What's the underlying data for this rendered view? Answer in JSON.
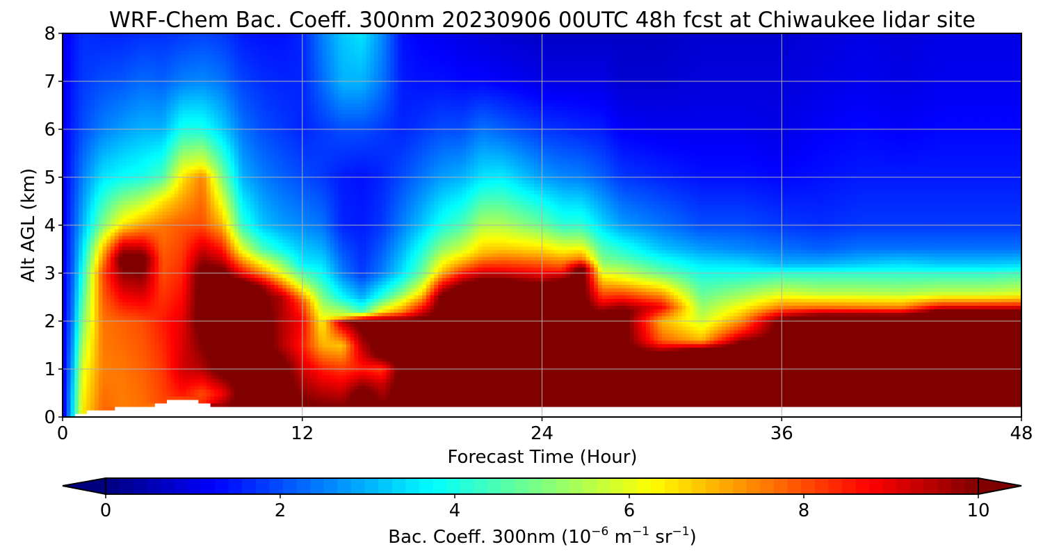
{
  "chart_data": {
    "type": "heatmap",
    "title": "WRF-Chem Bac. Coeff. 300nm  20230906 00UTC 48h fcst at Chiwaukee lidar site",
    "xlabel": "Forecast Time (Hour)",
    "ylabel": "Alt AGL (km)",
    "xlim": [
      0,
      48
    ],
    "ylim": [
      0,
      8
    ],
    "xticks": [
      "0",
      "12",
      "24",
      "36",
      "48"
    ],
    "yticks": [
      "0",
      "1",
      "2",
      "3",
      "4",
      "5",
      "6",
      "7",
      "8"
    ],
    "grid": true,
    "colorbar": {
      "label_main": "Bac. Coeff. 300nm  (10",
      "label_exp1": "−6",
      "label_mid": " m",
      "label_exp2": "−1",
      "label_sr": " sr",
      "label_exp3": "−1",
      "label_end": ")",
      "range": [
        0,
        10
      ],
      "ticks": [
        "0",
        "2",
        "4",
        "6",
        "8",
        "10"
      ],
      "extend": "both",
      "colormap": "jet"
    },
    "x_hours": [
      0,
      0.5,
      1,
      2,
      3,
      4,
      5,
      6,
      7,
      8,
      9,
      10,
      11,
      12,
      13,
      14,
      15,
      16,
      17,
      18,
      19,
      20,
      21,
      22,
      24,
      25,
      26,
      27,
      28,
      30,
      32,
      34,
      36,
      38,
      40,
      42,
      44,
      46,
      48
    ],
    "profiles": [
      {
        "t": 0,
        "sfc": 0,
        "z": [
          0,
          0.5,
          1,
          2,
          3,
          4,
          5,
          6,
          7,
          8
        ],
        "v": [
          0.8,
          0.9,
          0.9,
          1.0,
          1.0,
          1.0,
          1.0,
          1.0,
          1.0,
          1.0
        ]
      },
      {
        "t": 0.5,
        "sfc": 0,
        "z": [
          0,
          0.5,
          1,
          2,
          3,
          4,
          5,
          6,
          7,
          8
        ],
        "v": [
          3.5,
          3.3,
          3.0,
          2.5,
          2.2,
          2.0,
          1.8,
          1.6,
          1.5,
          1.4
        ]
      },
      {
        "t": 1,
        "sfc": 0.1,
        "z": [
          0,
          1,
          2,
          3,
          4,
          5,
          6,
          7,
          8
        ],
        "v": [
          6.5,
          6.0,
          5.0,
          4.0,
          3.0,
          2.5,
          2.0,
          1.8,
          1.7
        ]
      },
      {
        "t": 2,
        "sfc": 0.15,
        "z": [
          0,
          1,
          2,
          3,
          3.5,
          4,
          5,
          6,
          7,
          8
        ],
        "v": [
          7.8,
          7.5,
          7.6,
          8.0,
          6.8,
          5.0,
          3.5,
          2.5,
          2.0,
          1.6
        ]
      },
      {
        "t": 3,
        "sfc": 0.2,
        "z": [
          0,
          1,
          2,
          3,
          3.3,
          3.6,
          4,
          5,
          6,
          7,
          8
        ],
        "v": [
          7.5,
          7.6,
          7.8,
          9.8,
          10.5,
          9.0,
          6.5,
          3.8,
          2.8,
          2.1,
          1.6
        ]
      },
      {
        "t": 4,
        "sfc": 0.2,
        "z": [
          0,
          1,
          2,
          3,
          3.3,
          3.6,
          4,
          5,
          6,
          7,
          8
        ],
        "v": [
          7.6,
          7.8,
          8.0,
          10.0,
          10.5,
          9.0,
          7.2,
          4.0,
          3.0,
          2.3,
          1.7
        ]
      },
      {
        "t": 5,
        "sfc": 0.3,
        "z": [
          0,
          1,
          2,
          3,
          4,
          4.5,
          5,
          6,
          7,
          8
        ],
        "v": [
          8.0,
          8.2,
          8.5,
          8.0,
          7.6,
          6.5,
          4.5,
          3.0,
          2.2,
          1.7
        ]
      },
      {
        "t": 6,
        "sfc": 0.4,
        "z": [
          0,
          1,
          2,
          3,
          4,
          5,
          5.5,
          6,
          7,
          8
        ],
        "v": [
          8.0,
          9.2,
          9.0,
          8.4,
          7.9,
          6.5,
          5.2,
          4.0,
          2.5,
          1.8
        ]
      },
      {
        "t": 7,
        "sfc": 0.3,
        "z": [
          0,
          0.5,
          1,
          2,
          3,
          4,
          5,
          5.3,
          6,
          7,
          8
        ],
        "v": [
          8.8,
          8.0,
          9.5,
          10.5,
          10.5,
          8.0,
          7.5,
          6.0,
          4.0,
          2.6,
          1.9
        ]
      },
      {
        "t": 8,
        "sfc": 0.2,
        "z": [
          0,
          0.5,
          1,
          2,
          3,
          3.3,
          4,
          5,
          6,
          7,
          8
        ],
        "v": [
          10.5,
          8.8,
          10.5,
          10.5,
          10.5,
          9.2,
          7.0,
          5.0,
          3.3,
          2.4,
          1.8
        ]
      },
      {
        "t": 9,
        "sfc": 0.2,
        "z": [
          0,
          1,
          2,
          2.8,
          3,
          3.5,
          4,
          5,
          6,
          7,
          8
        ],
        "v": [
          10.5,
          10.5,
          10.5,
          10.5,
          8.8,
          6.0,
          4.2,
          3.0,
          2.4,
          1.9,
          1.5
        ]
      },
      {
        "t": 10,
        "sfc": 0.2,
        "z": [
          0,
          1,
          2,
          2.7,
          3,
          3.5,
          4,
          5,
          6,
          7,
          8
        ],
        "v": [
          10.5,
          10.5,
          10.5,
          10.0,
          7.5,
          4.5,
          3.2,
          2.5,
          2.0,
          1.7,
          1.4
        ]
      },
      {
        "t": 11,
        "sfc": 0.2,
        "z": [
          0,
          1,
          1.5,
          2,
          2.5,
          3,
          3.5,
          4,
          5,
          6,
          7,
          8
        ],
        "v": [
          10.5,
          10.5,
          9.5,
          9.5,
          9.5,
          6.0,
          3.8,
          2.8,
          2.2,
          1.8,
          1.6,
          1.4
        ]
      },
      {
        "t": 12,
        "sfc": 0.2,
        "z": [
          0,
          1,
          1.5,
          2,
          2.4,
          2.8,
          3.2,
          4,
          5,
          6,
          7,
          8
        ],
        "v": [
          10.5,
          9.2,
          8.5,
          8.8,
          8.0,
          5.5,
          3.6,
          2.6,
          2.0,
          1.6,
          1.6,
          1.6
        ]
      },
      {
        "t": 13,
        "sfc": 0.2,
        "z": [
          0,
          1,
          1.5,
          2,
          2.5,
          3,
          3.5,
          4,
          5,
          6,
          7,
          8
        ],
        "v": [
          10.5,
          8.5,
          7.0,
          6.3,
          5.0,
          3.8,
          3.0,
          2.4,
          1.8,
          1.8,
          2.3,
          2.5
        ]
      },
      {
        "t": 14,
        "sfc": 0.2,
        "z": [
          0,
          1,
          1.5,
          2,
          2.1,
          2.5,
          3,
          4,
          5,
          6,
          7,
          8
        ],
        "v": [
          10.5,
          8.2,
          6.8,
          9.5,
          6.0,
          3.8,
          2.5,
          1.6,
          1.5,
          2.0,
          3.0,
          3.2
        ]
      },
      {
        "t": 15,
        "sfc": 0.2,
        "z": [
          0,
          0.5,
          1,
          1.5,
          2,
          2.2,
          2.5,
          3,
          4,
          5,
          6,
          7,
          8
        ],
        "v": [
          10.5,
          10.5,
          8.5,
          9.5,
          10.5,
          4.5,
          3.0,
          1.8,
          1.5,
          1.4,
          2.0,
          3.0,
          3.5
        ]
      },
      {
        "t": 16,
        "sfc": 0.2,
        "z": [
          0,
          0.7,
          1,
          1.3,
          2,
          2.2,
          2.5,
          3,
          4,
          5,
          6,
          7,
          8
        ],
        "v": [
          10.5,
          9.2,
          8.2,
          10.5,
          10.5,
          6.5,
          4.2,
          2.5,
          1.8,
          1.6,
          1.8,
          2.4,
          2.6
        ]
      },
      {
        "t": 17,
        "sfc": 0.2,
        "z": [
          0,
          1,
          2,
          2.2,
          2.6,
          3,
          4,
          5,
          6,
          7,
          8
        ],
        "v": [
          10.5,
          10.5,
          10.5,
          7.5,
          5.0,
          3.5,
          2.5,
          2.0,
          1.6,
          1.5,
          1.4
        ]
      },
      {
        "t": 18,
        "sfc": 0.2,
        "z": [
          0,
          1,
          2,
          2.3,
          2.6,
          3,
          3.5,
          4,
          5,
          6,
          7,
          8
        ],
        "v": [
          10.5,
          10.5,
          10.5,
          8.5,
          6.5,
          4.8,
          4.0,
          3.2,
          2.4,
          1.8,
          1.4,
          1.2
        ]
      },
      {
        "t": 19,
        "sfc": 0.2,
        "z": [
          0,
          1,
          2,
          2.5,
          2.8,
          3,
          3.5,
          4,
          5,
          6,
          7,
          8
        ],
        "v": [
          10.5,
          10.5,
          10.5,
          10.5,
          8.5,
          7.0,
          5.2,
          4.0,
          2.8,
          2.0,
          1.4,
          1.1
        ]
      },
      {
        "t": 20,
        "sfc": 0.2,
        "z": [
          0,
          1,
          2,
          2.7,
          3,
          3.2,
          3.5,
          4,
          5,
          6,
          7,
          8
        ],
        "v": [
          10.5,
          10.5,
          10.5,
          10.5,
          8.5,
          7.2,
          5.8,
          4.5,
          3.0,
          2.0,
          1.3,
          1.0
        ]
      },
      {
        "t": 21,
        "sfc": 0.2,
        "z": [
          0,
          1,
          2,
          2.8,
          3.1,
          3.4,
          4,
          4.5,
          5,
          6,
          7,
          8
        ],
        "v": [
          10.5,
          10.5,
          10.5,
          10.5,
          8.6,
          7.0,
          5.5,
          4.5,
          3.5,
          2.4,
          1.3,
          0.9
        ]
      },
      {
        "t": 22,
        "sfc": 0.2,
        "z": [
          0,
          1,
          2,
          2.8,
          3.1,
          3.5,
          4,
          5,
          6,
          7,
          8
        ],
        "v": [
          10.5,
          10.5,
          10.5,
          10.5,
          8.6,
          6.8,
          5.5,
          3.6,
          2.2,
          1.2,
          0.8
        ]
      },
      {
        "t": 24,
        "sfc": 0.2,
        "z": [
          0,
          1,
          2,
          2.7,
          3.0,
          3.4,
          4,
          5,
          6,
          7,
          8
        ],
        "v": [
          10.5,
          10.5,
          10.5,
          10.5,
          8.8,
          7.0,
          4.8,
          2.8,
          1.8,
          1.0,
          0.7
        ]
      },
      {
        "t": 25,
        "sfc": 0.2,
        "z": [
          0,
          1,
          2,
          2.8,
          3.1,
          3.5,
          4,
          5,
          6,
          7,
          8
        ],
        "v": [
          10.5,
          10.5,
          10.5,
          10.5,
          8.2,
          6.2,
          4.2,
          2.6,
          1.7,
          1.0,
          0.7
        ]
      },
      {
        "t": 26,
        "sfc": 0.2,
        "z": [
          0,
          1,
          2,
          3.1,
          3.3,
          3.6,
          4,
          5,
          6,
          7,
          8
        ],
        "v": [
          10.5,
          10.5,
          10.5,
          10.5,
          7.6,
          5.8,
          4.2,
          2.5,
          1.6,
          1.0,
          0.7
        ]
      },
      {
        "t": 27,
        "sfc": 0.2,
        "z": [
          0,
          1,
          2.1,
          2.4,
          2.8,
          3.2,
          4,
          5,
          6,
          7,
          8
        ],
        "v": [
          10.5,
          10.5,
          10.5,
          8.8,
          7.0,
          5.2,
          3.4,
          2.2,
          1.5,
          1.0,
          0.7
        ]
      },
      {
        "t": 28,
        "sfc": 0.2,
        "z": [
          0,
          1,
          2.2,
          2.5,
          2.9,
          3.3,
          4,
          5,
          6,
          7,
          8
        ],
        "v": [
          10.5,
          10.5,
          10.5,
          8.5,
          6.2,
          4.6,
          2.8,
          1.8,
          1.2,
          0.8,
          0.7
        ]
      },
      {
        "t": 30,
        "sfc": 0.2,
        "z": [
          0,
          1.3,
          1.6,
          2.0,
          2.3,
          3.0,
          3.5,
          4,
          5,
          6,
          7,
          8
        ],
        "v": [
          10.5,
          10.5,
          7.8,
          7.0,
          8.8,
          4.8,
          3.2,
          2.4,
          1.6,
          1.1,
          0.8,
          0.7
        ]
      },
      {
        "t": 32,
        "sfc": 0.2,
        "z": [
          0,
          1.4,
          1.6,
          2.0,
          2.3,
          3.0,
          3.5,
          4,
          5,
          6,
          7,
          8
        ],
        "v": [
          10.5,
          10.5,
          7.0,
          5.8,
          5.2,
          4.0,
          2.8,
          2.0,
          1.4,
          1.1,
          0.9,
          0.8
        ]
      },
      {
        "t": 34,
        "sfc": 0.2,
        "z": [
          0,
          1.5,
          1.8,
          2.1,
          2.5,
          3.0,
          3.5,
          4,
          5,
          6,
          7,
          8
        ],
        "v": [
          10.5,
          10.5,
          8.4,
          7.0,
          5.5,
          4.0,
          2.6,
          2.0,
          1.4,
          1.1,
          0.9,
          0.8
        ]
      },
      {
        "t": 36,
        "sfc": 0.2,
        "z": [
          0,
          2.0,
          2.3,
          2.6,
          3.0,
          3.2,
          3.5,
          4,
          5,
          6,
          7,
          8
        ],
        "v": [
          10.5,
          10.5,
          7.5,
          5.8,
          4.2,
          3.0,
          2.4,
          1.8,
          1.3,
          1.0,
          0.9,
          0.8
        ]
      },
      {
        "t": 38,
        "sfc": 0.2,
        "z": [
          0,
          2.1,
          2.3,
          2.6,
          3.0,
          3.2,
          3.5,
          4,
          5,
          6,
          7,
          8
        ],
        "v": [
          10.5,
          10.5,
          7.6,
          5.5,
          4.2,
          3.0,
          2.2,
          1.7,
          1.4,
          1.2,
          1.0,
          0.9
        ]
      },
      {
        "t": 40,
        "sfc": 0.2,
        "z": [
          0,
          2.1,
          2.3,
          2.6,
          3.0,
          3.2,
          3.5,
          4,
          5,
          6,
          7,
          8
        ],
        "v": [
          10.5,
          10.5,
          7.5,
          5.5,
          4.2,
          3.2,
          2.4,
          1.8,
          1.5,
          1.3,
          1.1,
          1.0
        ]
      },
      {
        "t": 42,
        "sfc": 0.2,
        "z": [
          0,
          2.1,
          2.3,
          2.6,
          3.0,
          3.2,
          3.5,
          4,
          5,
          6,
          7,
          8
        ],
        "v": [
          10.5,
          10.5,
          7.4,
          5.4,
          4.2,
          3.4,
          2.4,
          1.8,
          1.5,
          1.2,
          1.0,
          0.9
        ]
      },
      {
        "t": 44,
        "sfc": 0.2,
        "z": [
          0,
          2.2,
          2.4,
          2.6,
          3.0,
          3.2,
          3.5,
          4,
          5,
          6,
          7,
          8
        ],
        "v": [
          10.5,
          10.5,
          7.5,
          5.6,
          4.2,
          3.2,
          2.4,
          1.8,
          1.5,
          1.3,
          1.1,
          1.0
        ]
      },
      {
        "t": 46,
        "sfc": 0.2,
        "z": [
          0,
          2.2,
          2.4,
          2.6,
          3.0,
          3.2,
          3.5,
          4,
          5,
          6,
          7,
          8
        ],
        "v": [
          10.5,
          10.5,
          7.5,
          5.6,
          4.2,
          3.2,
          2.4,
          1.8,
          1.5,
          1.3,
          1.1,
          1.0
        ]
      },
      {
        "t": 48,
        "sfc": 0.2,
        "z": [
          0,
          2.2,
          2.4,
          2.6,
          3.0,
          3.2,
          3.5,
          4,
          5,
          6,
          7,
          8
        ],
        "v": [
          10.5,
          10.5,
          7.6,
          5.8,
          4.4,
          3.3,
          2.4,
          1.8,
          1.5,
          1.3,
          1.1,
          1.0
        ]
      }
    ]
  }
}
